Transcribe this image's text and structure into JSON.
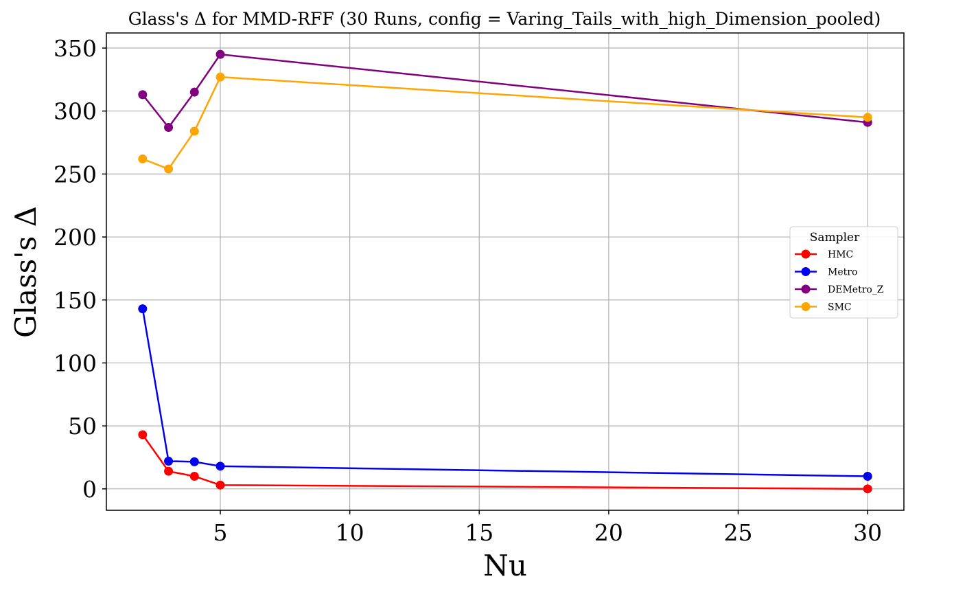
{
  "chart_data": {
    "type": "line",
    "title": "Glass's Δ for MMD-RFF (30 Runs, config = Varing_Tails_with_high_Dimension_pooled)",
    "xlabel": "Nu",
    "ylabel": "Glass's Δ",
    "x": [
      2,
      3,
      4,
      5,
      30
    ],
    "xlim": [
      0.6,
      31.4
    ],
    "ylim": [
      -17,
      362
    ],
    "xticks": [
      5,
      10,
      15,
      20,
      25,
      30
    ],
    "yticks": [
      0,
      50,
      100,
      150,
      200,
      250,
      300,
      350
    ],
    "grid": true,
    "legend": {
      "title": "Sampler",
      "placement": "center-right"
    },
    "series": [
      {
        "name": "HMC",
        "color": "#ff0000",
        "values": [
          43,
          14,
          10,
          3,
          0
        ]
      },
      {
        "name": "Metro",
        "color": "#0000ee",
        "values": [
          143,
          22,
          21.5,
          18,
          10
        ]
      },
      {
        "name": "DEMetro_Z",
        "color": "#800080",
        "values": [
          313,
          287,
          315,
          345,
          291
        ]
      },
      {
        "name": "SMC",
        "color": "#ffa500",
        "values": [
          262,
          254,
          284,
          327,
          295
        ]
      }
    ]
  }
}
